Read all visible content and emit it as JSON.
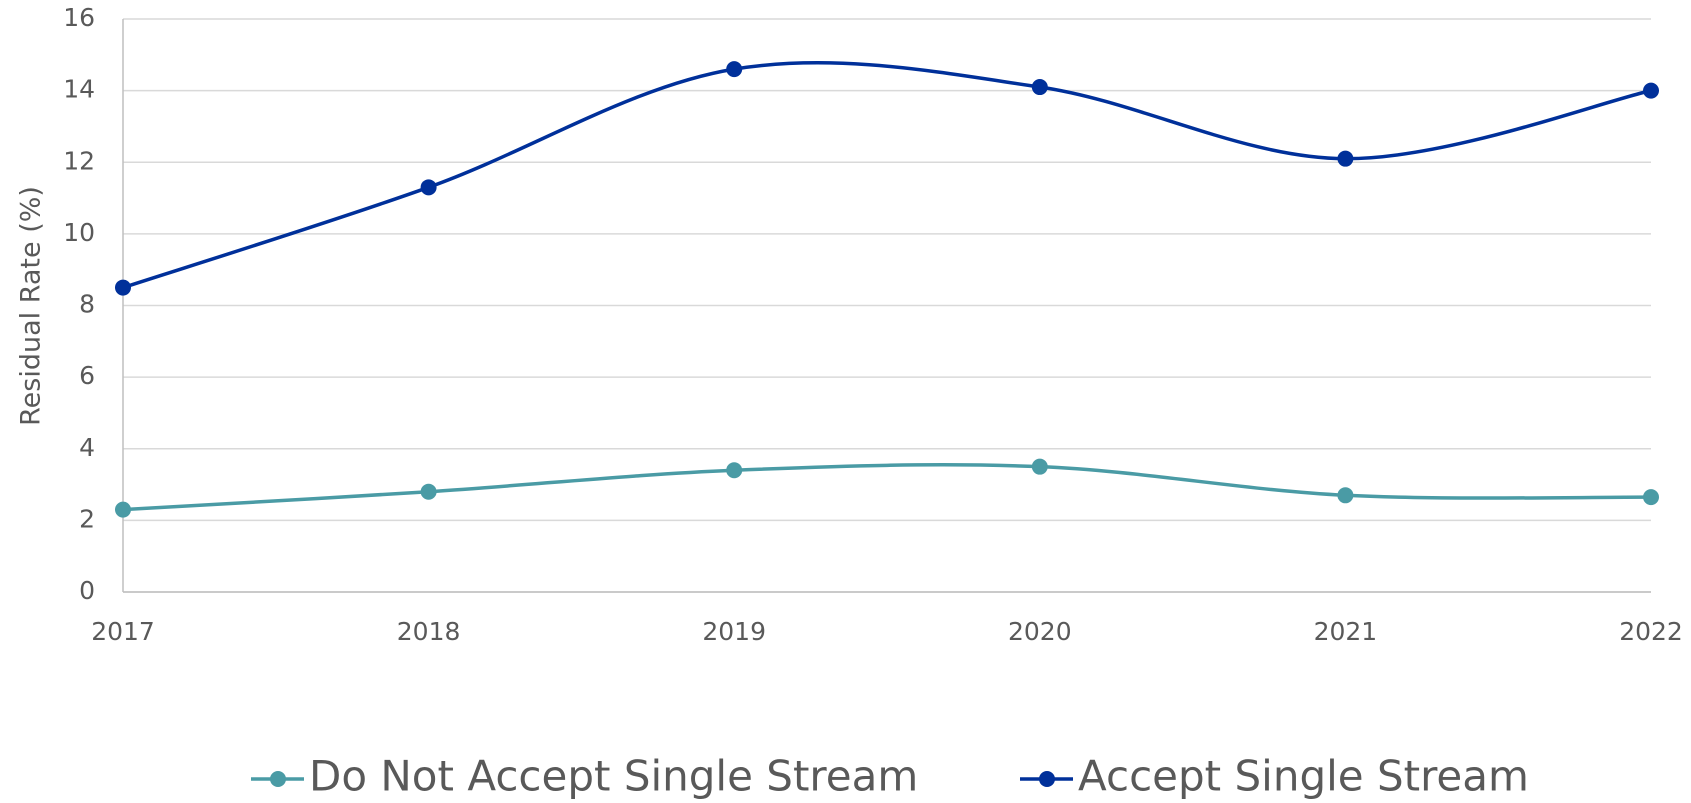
{
  "chart_data": {
    "type": "line",
    "y_label": "Residual Rate (%)",
    "categories": [
      "2017",
      "2018",
      "2019",
      "2020",
      "2021",
      "2022"
    ],
    "series": [
      {
        "name": "Do Not Accept Single Stream",
        "color": "#4a9ba5",
        "values": [
          2.3,
          2.8,
          3.4,
          3.5,
          2.7,
          2.65
        ]
      },
      {
        "name": "Accept Single Stream",
        "color": "#00309a",
        "values": [
          8.5,
          11.3,
          14.6,
          14.1,
          12.1,
          14.0
        ]
      }
    ],
    "ylim": [
      0,
      16
    ],
    "yticks": [
      0,
      2,
      4,
      6,
      8,
      10,
      12,
      14,
      16
    ],
    "grid": true,
    "smooth": true,
    "legend": "bottom"
  }
}
